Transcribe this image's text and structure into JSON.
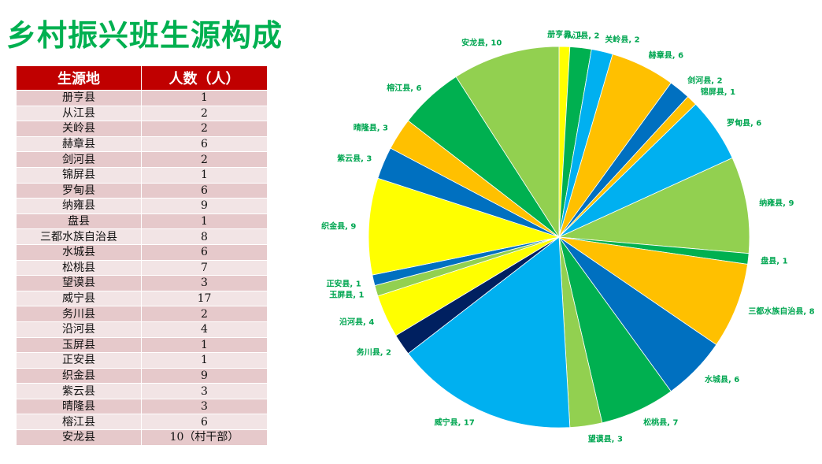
{
  "title": "乡村振兴班生源构成",
  "table": {
    "headers": [
      "生源地",
      "人数（人）"
    ],
    "rows": [
      {
        "place": "册亨县",
        "count": "1"
      },
      {
        "place": "从江县",
        "count": "2"
      },
      {
        "place": "关岭县",
        "count": "2"
      },
      {
        "place": "赫章县",
        "count": "6"
      },
      {
        "place": "剑河县",
        "count": "2"
      },
      {
        "place": "锦屏县",
        "count": "1"
      },
      {
        "place": "罗甸县",
        "count": "6"
      },
      {
        "place": "纳雍县",
        "count": "9"
      },
      {
        "place": "盘县",
        "count": "1"
      },
      {
        "place": "三都水族自治县",
        "count": "8"
      },
      {
        "place": "水城县",
        "count": "6"
      },
      {
        "place": "松桃县",
        "count": "7"
      },
      {
        "place": "望谟县",
        "count": "3"
      },
      {
        "place": "威宁县",
        "count": "17"
      },
      {
        "place": "务川县",
        "count": "2"
      },
      {
        "place": "沿河县",
        "count": "4"
      },
      {
        "place": "玉屏县",
        "count": "1"
      },
      {
        "place": "正安县",
        "count": "1"
      },
      {
        "place": "织金县",
        "count": "9"
      },
      {
        "place": "紫云县",
        "count": "3"
      },
      {
        "place": "晴隆县",
        "count": "3"
      },
      {
        "place": "榕江县",
        "count": "6"
      },
      {
        "place": "安龙县",
        "count": "10（村干部）"
      }
    ]
  },
  "chart_data": {
    "type": "pie",
    "title": "",
    "slices": [
      {
        "label": "册亨县",
        "value": 1,
        "color": "#ffff00"
      },
      {
        "label": "从江县",
        "value": 2,
        "color": "#00b050"
      },
      {
        "label": "关岭县",
        "value": 2,
        "color": "#00b0f0"
      },
      {
        "label": "赫章县",
        "value": 6,
        "color": "#ffc000"
      },
      {
        "label": "剑河县",
        "value": 2,
        "color": "#0070c0"
      },
      {
        "label": "锦屏县",
        "value": 1,
        "color": "#ffc000"
      },
      {
        "label": "罗甸县",
        "value": 6,
        "color": "#00b0f0"
      },
      {
        "label": "纳雍县",
        "value": 9,
        "color": "#92d050"
      },
      {
        "label": "盘县",
        "value": 1,
        "color": "#00b050"
      },
      {
        "label": "三都水族自治县",
        "value": 8,
        "color": "#ffc000"
      },
      {
        "label": "水城县",
        "value": 6,
        "color": "#0070c0"
      },
      {
        "label": "松桃县",
        "value": 7,
        "color": "#00b050"
      },
      {
        "label": "望谟县",
        "value": 3,
        "color": "#92d050"
      },
      {
        "label": "威宁县",
        "value": 17,
        "color": "#00b0f0"
      },
      {
        "label": "务川县",
        "value": 2,
        "color": "#002060"
      },
      {
        "label": "沿河县",
        "value": 4,
        "color": "#ffff00"
      },
      {
        "label": "玉屏县",
        "value": 1,
        "color": "#92d050"
      },
      {
        "label": "正安县",
        "value": 1,
        "color": "#0070c0"
      },
      {
        "label": "织金县",
        "value": 9,
        "color": "#ffff00"
      },
      {
        "label": "紫云县",
        "value": 3,
        "color": "#0070c0"
      },
      {
        "label": "晴隆县",
        "value": 3,
        "color": "#ffc000"
      },
      {
        "label": "榕江县",
        "value": 6,
        "color": "#00b050"
      },
      {
        "label": "安龙县",
        "value": 10,
        "color": "#92d050"
      }
    ],
    "data_labels": [
      "册亨县, 1",
      "从江县, 2",
      "关岭县, 2",
      "赫章县, 6",
      "剑河县, 2",
      "锦屏县, 1",
      "罗甸县, 6",
      "纳雍县, 9",
      "盘县, 1",
      "三都水族自治县, 8",
      "水城县, 6",
      "松桃县, 7",
      "望谟县, 3",
      "威宁县, 17",
      "务川县, 2",
      "沿河县, 4",
      "玉屏县, 1",
      "正安县, 1",
      "织金县, 9",
      "紫云县, 3",
      "晴隆县, 3",
      "榕江县, 6",
      "安龙县, 10"
    ],
    "label_color": "#00a651",
    "start": "top, clockwise"
  },
  "colors": {
    "title": "#00b050",
    "table_header_bg": "#c00000",
    "row_odd_bg": "#e6c9cb",
    "row_even_bg": "#f2e4e5"
  }
}
